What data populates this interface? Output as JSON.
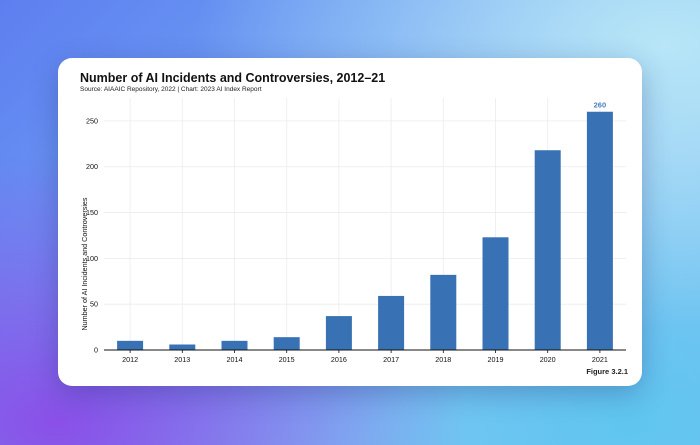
{
  "chart_data": {
    "type": "bar",
    "title": "Number of AI Incidents and Controversies, 2012–21",
    "subtitle": "Source: AIAAIC Repository, 2022 | Chart: 2023 AI Index Report",
    "ylabel": "Number of AI Incidents and Controversies",
    "xlabel": "",
    "categories": [
      "2012",
      "2013",
      "2014",
      "2015",
      "2016",
      "2017",
      "2018",
      "2019",
      "2020",
      "2021"
    ],
    "values": [
      10,
      6,
      10,
      14,
      37,
      59,
      82,
      123,
      218,
      260
    ],
    "data_labels": [
      null,
      null,
      null,
      null,
      null,
      null,
      null,
      null,
      null,
      "260"
    ],
    "ylim": [
      0,
      275
    ],
    "yticks": [
      0,
      50,
      100,
      150,
      200,
      250
    ],
    "grid": true,
    "bar_color": "#3872b4",
    "label_color": "#4a7fc1",
    "footer": "Figure 3.2.1"
  }
}
